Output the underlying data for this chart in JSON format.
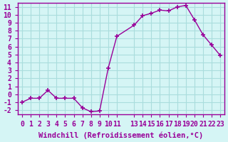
{
  "x": [
    0,
    1,
    2,
    3,
    4,
    5,
    6,
    7,
    8,
    9,
    10,
    11,
    13,
    14,
    15,
    16,
    17,
    18,
    19,
    20,
    21,
    22,
    23
  ],
  "y": [
    -1,
    -0.5,
    -0.5,
    0.5,
    -0.5,
    -0.5,
    -0.5,
    -1.7,
    -2.2,
    -2.1,
    3.3,
    7.3,
    8.7,
    9.9,
    10.2,
    10.6,
    10.5,
    11.0,
    11.2,
    9.4,
    7.5,
    6.2,
    4.9
  ],
  "line_color": "#990099",
  "background_color": "#d5f5f5",
  "grid_color": "#aadddd",
  "xlabel": "Windchill (Refroidissement éolien,°C)",
  "xlim": [
    -0.5,
    23.5
  ],
  "ylim": [
    -2.5,
    11.5
  ],
  "xticks": [
    0,
    1,
    2,
    3,
    4,
    5,
    6,
    7,
    8,
    9,
    10,
    11,
    13,
    14,
    15,
    16,
    17,
    18,
    19,
    20,
    21,
    22,
    23
  ],
  "yticks": [
    -2,
    -1,
    0,
    1,
    2,
    3,
    4,
    5,
    6,
    7,
    8,
    9,
    10,
    11
  ],
  "label_color": "#990099",
  "tick_color": "#990099",
  "spine_color": "#990099",
  "font_family": "monospace",
  "fontsize_axis": 7,
  "fontsize_xlabel": 7.5
}
